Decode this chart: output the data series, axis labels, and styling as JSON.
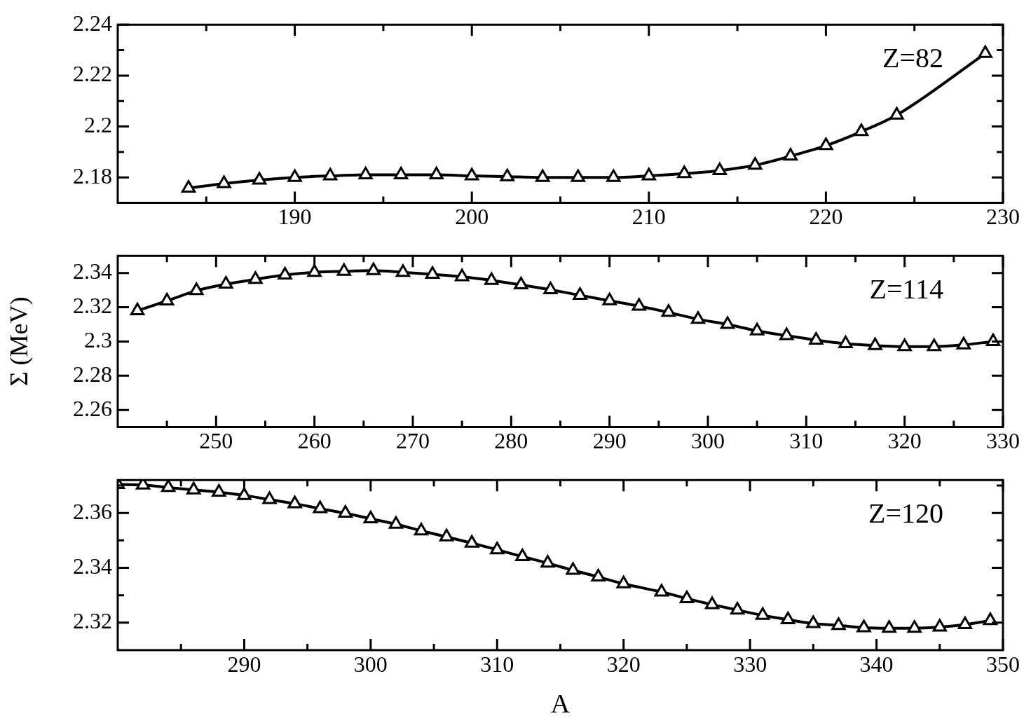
{
  "chart_data": [
    {
      "type": "line",
      "annotations": [
        "Z=82"
      ],
      "marker": "triangle",
      "line_style": "solid",
      "grid": false,
      "xlim": [
        180,
        230
      ],
      "ylim": [
        2.17,
        2.24
      ],
      "xticks": [
        {
          "value": 185,
          "label": null
        },
        190,
        {
          "value": 195,
          "label": null
        },
        200,
        {
          "value": 205,
          "label": null
        },
        210,
        {
          "value": 215,
          "label": null
        },
        220,
        {
          "value": 225,
          "label": null
        },
        230
      ],
      "yticks": [
        2.18,
        {
          "value": 2.19,
          "label": null
        },
        2.2,
        {
          "value": 2.21,
          "label": null
        },
        2.22,
        {
          "value": 2.23,
          "label": null
        },
        2.24
      ],
      "x": [
        184,
        186,
        188,
        190,
        192,
        194,
        196,
        198,
        200,
        202,
        204,
        206,
        208,
        210,
        212,
        214,
        216,
        218,
        220,
        222,
        224,
        229
      ],
      "series": [
        {
          "color": "#000000",
          "values": [
            2.1758,
            2.1776,
            2.179,
            2.18,
            2.1806,
            2.181,
            2.181,
            2.181,
            2.1806,
            2.1803,
            2.18,
            2.18,
            2.18,
            2.1806,
            2.1815,
            2.1827,
            2.1848,
            2.1884,
            2.1925,
            2.198,
            2.2045,
            2.2287
          ]
        }
      ]
    },
    {
      "type": "line",
      "ylabel": "Σ (MeV)",
      "annotations": [
        "Z=114"
      ],
      "marker": "triangle",
      "line_style": "solid",
      "grid": false,
      "xlim": [
        240,
        330
      ],
      "ylim": [
        2.25,
        2.35
      ],
      "xticks": [
        {
          "value": 245,
          "label": null
        },
        250,
        {
          "value": 255,
          "label": null
        },
        260,
        {
          "value": 265,
          "label": null
        },
        270,
        {
          "value": 275,
          "label": null
        },
        280,
        {
          "value": 285,
          "label": null
        },
        290,
        {
          "value": 295,
          "label": null
        },
        300,
        {
          "value": 305,
          "label": null
        },
        310,
        {
          "value": 315,
          "label": null
        },
        320,
        {
          "value": 325,
          "label": null
        },
        330
      ],
      "yticks": [
        2.26,
        2.28,
        2.3,
        2.32,
        2.34
      ],
      "x": [
        242,
        245,
        248,
        251,
        254,
        257,
        260,
        263,
        266,
        269,
        272,
        275,
        278,
        281,
        284,
        287,
        290,
        293,
        296,
        299,
        302,
        305,
        308,
        311,
        314,
        317,
        320,
        323,
        326,
        329
      ],
      "series": [
        {
          "color": "#000000",
          "values": [
            2.318,
            2.3237,
            2.3297,
            2.3335,
            2.3363,
            2.3388,
            2.3404,
            2.341,
            2.3414,
            2.3404,
            2.3392,
            2.3378,
            2.3357,
            2.3331,
            2.3302,
            2.327,
            2.3238,
            2.3206,
            2.317,
            2.313,
            2.31,
            2.3062,
            2.3034,
            2.3008,
            2.2987,
            2.2976,
            2.297,
            2.297,
            2.298,
            2.3
          ]
        }
      ]
    },
    {
      "type": "line",
      "xlabel": "A",
      "annotations": [
        "Z=120"
      ],
      "marker": "triangle",
      "line_style": "solid",
      "grid": false,
      "xlim": [
        280,
        350
      ],
      "ylim": [
        2.31,
        2.372
      ],
      "xticks": [
        {
          "value": 285,
          "label": null
        },
        290,
        {
          "value": 295,
          "label": null
        },
        300,
        {
          "value": 305,
          "label": null
        },
        310,
        {
          "value": 315,
          "label": null
        },
        320,
        {
          "value": 325,
          "label": null
        },
        330,
        {
          "value": 335,
          "label": null
        },
        340,
        {
          "value": 345,
          "label": null
        },
        350
      ],
      "yticks": [
        2.32,
        {
          "value": 2.33,
          "label": null
        },
        2.34,
        {
          "value": 2.35,
          "label": null
        },
        2.36,
        {
          "value": 2.37,
          "label": null
        }
      ],
      "x": [
        280,
        282,
        284,
        286,
        288,
        290,
        292,
        294,
        296,
        298,
        300,
        302,
        304,
        306,
        308,
        310,
        312,
        314,
        316,
        318,
        320,
        323,
        325,
        327,
        329,
        331,
        333,
        335,
        337,
        339,
        341,
        343,
        345,
        347,
        349
      ],
      "series": [
        {
          "color": "#000000",
          "values": [
            2.3704,
            2.3702,
            2.3693,
            2.3684,
            2.3676,
            2.3664,
            2.3649,
            2.3634,
            2.3616,
            2.3599,
            2.3579,
            2.3559,
            2.3535,
            2.3513,
            2.349,
            2.3466,
            2.3441,
            2.3417,
            2.3391,
            2.3367,
            2.3342,
            2.3312,
            2.3288,
            2.3266,
            2.3246,
            2.3227,
            2.3211,
            2.3197,
            2.319,
            2.3182,
            2.318,
            2.318,
            2.3184,
            2.3193,
            2.3208
          ]
        }
      ]
    }
  ]
}
